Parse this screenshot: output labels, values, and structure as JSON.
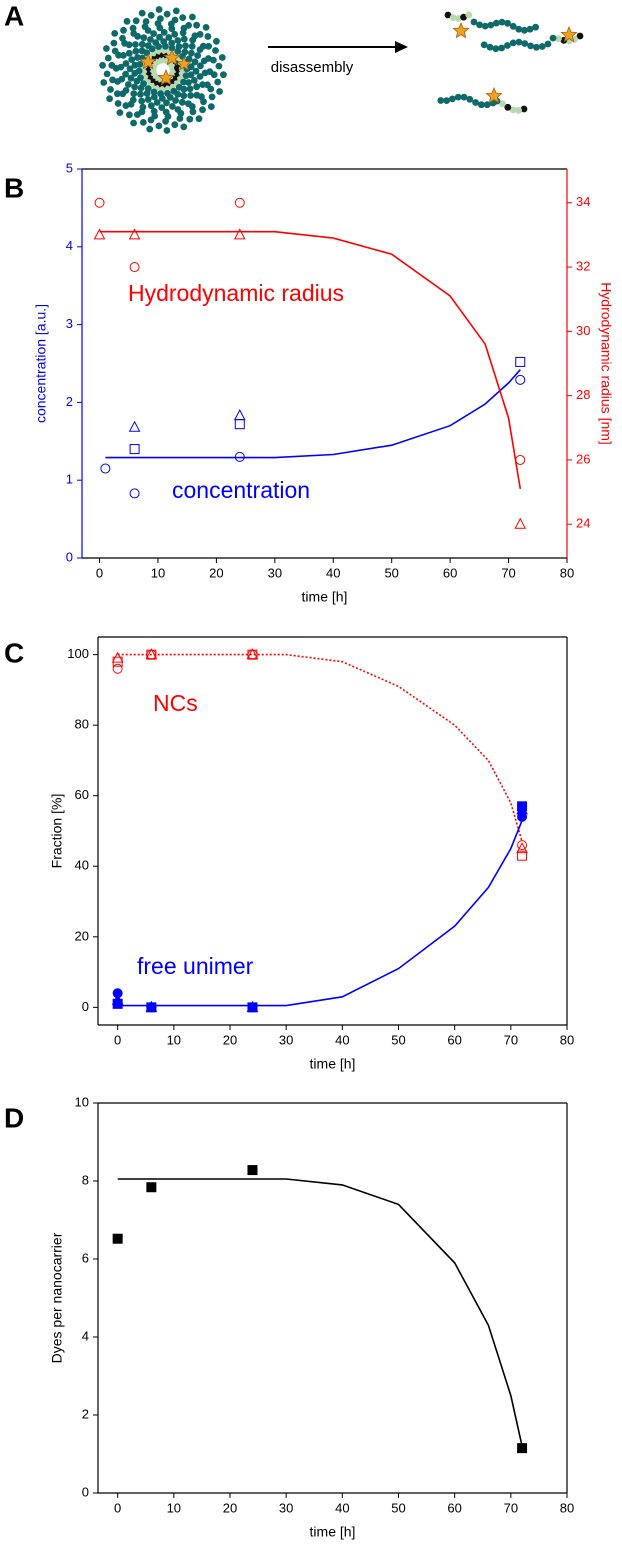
{
  "schematic": {
    "panel": "A",
    "label": "disassembly"
  },
  "chart_data": [
    {
      "type": "scatter",
      "panel": "B",
      "xlabel": "time [h]",
      "ylabel": "concentration [a.u.]",
      "y2label": "Hydrodynamic radius [nm]",
      "xlim": [
        -3,
        80
      ],
      "xticks": [
        0,
        10,
        20,
        30,
        40,
        50,
        60,
        70,
        80
      ],
      "ylim": [
        0,
        5
      ],
      "yticks": [
        0,
        1,
        2,
        3,
        4,
        5
      ],
      "ycolor": "#0000ff",
      "y2lim": [
        22.95,
        35.05
      ],
      "y2ticks": [
        24,
        26,
        28,
        30,
        32,
        34
      ],
      "y2color": "#ff0000",
      "annotations": [
        {
          "text": "Hydrodynamic radius",
          "color": "#ff0000"
        },
        {
          "text": "concentration",
          "color": "#0000ff"
        }
      ],
      "series": [
        {
          "marker": "circle",
          "filled": false,
          "color": "#0000ff",
          "x": [
            1,
            6,
            24,
            72
          ],
          "values": [
            1.15,
            0.83,
            1.3,
            2.29
          ]
        },
        {
          "marker": "square",
          "filled": false,
          "color": "#0000ff",
          "x": [
            6,
            24,
            72
          ],
          "values": [
            1.4,
            1.72,
            2.52
          ]
        },
        {
          "marker": "triangle",
          "filled": false,
          "color": "#0000ff",
          "x": [
            6,
            24
          ],
          "values": [
            1.68,
            1.83
          ]
        },
        {
          "marker": "line",
          "color": "#0000ff",
          "x": [
            1,
            30,
            40,
            50,
            60,
            66,
            70,
            72
          ],
          "values": [
            1.29,
            1.29,
            1.33,
            1.45,
            1.7,
            1.98,
            2.25,
            2.42
          ]
        },
        {
          "marker": "circle",
          "filled": false,
          "color": "#ff0000",
          "axis": "y2",
          "x": [
            0,
            6,
            24,
            72
          ],
          "values": [
            34,
            32,
            34,
            26
          ]
        },
        {
          "marker": "triangle",
          "filled": false,
          "color": "#ff0000",
          "axis": "y2",
          "x": [
            0,
            6,
            24,
            72
          ],
          "values": [
            33,
            33,
            33,
            24
          ]
        },
        {
          "marker": "line",
          "color": "#ff0000",
          "axis": "y2",
          "x": [
            0,
            30,
            40,
            50,
            60,
            66,
            70,
            72
          ],
          "values": [
            33.1,
            33.1,
            32.9,
            32.4,
            31.1,
            29.6,
            27.3,
            25.1
          ]
        }
      ]
    },
    {
      "type": "scatter",
      "panel": "C",
      "xlabel": "time [h]",
      "ylabel": "Fraction [%]",
      "xlim": [
        -3.5,
        80
      ],
      "xticks": [
        0,
        10,
        20,
        30,
        40,
        50,
        60,
        70,
        80
      ],
      "ylim": [
        -5,
        105
      ],
      "yticks": [
        0,
        20,
        40,
        60,
        80,
        100
      ],
      "annotations": [
        {
          "text": "NCs",
          "color": "#ff0000"
        },
        {
          "text": "free unimer",
          "color": "#0000ff"
        }
      ],
      "series": [
        {
          "marker": "circle",
          "filled": false,
          "color": "#ff0000",
          "x": [
            0,
            6,
            24,
            72
          ],
          "values": [
            96,
            100,
            100,
            46
          ]
        },
        {
          "marker": "square",
          "filled": false,
          "color": "#ff0000",
          "x": [
            0,
            6,
            24,
            72
          ],
          "values": [
            98,
            100,
            100,
            43
          ]
        },
        {
          "marker": "triangle",
          "filled": false,
          "color": "#ff0000",
          "x": [
            0,
            6,
            24,
            72
          ],
          "values": [
            99,
            100,
            100,
            45
          ]
        },
        {
          "marker": "line",
          "dash": true,
          "color": "#ff0000",
          "x": [
            0,
            30,
            40,
            50,
            60,
            66,
            70,
            72
          ],
          "values": [
            100,
            100,
            98,
            91,
            80,
            70,
            58,
            47
          ]
        },
        {
          "marker": "circle",
          "filled": true,
          "color": "#0000ff",
          "x": [
            0,
            6,
            24,
            72
          ],
          "values": [
            4,
            0,
            0,
            54
          ]
        },
        {
          "marker": "square",
          "filled": true,
          "color": "#0000ff",
          "x": [
            0,
            6,
            24,
            72
          ],
          "values": [
            1,
            0,
            0,
            57
          ]
        },
        {
          "marker": "triangle",
          "filled": true,
          "color": "#0000ff",
          "x": [
            0,
            6,
            24,
            72
          ],
          "values": [
            2,
            0,
            0,
            56
          ]
        },
        {
          "marker": "line",
          "color": "#0000ff",
          "x": [
            0,
            30,
            40,
            50,
            60,
            66,
            70,
            72
          ],
          "values": [
            0.5,
            0.5,
            3,
            11,
            23,
            34,
            45,
            53
          ]
        }
      ]
    },
    {
      "type": "scatter",
      "panel": "D",
      "xlabel": "time [h]",
      "ylabel": "Dyes per nanocarrier",
      "xlim": [
        -3.5,
        80
      ],
      "xticks": [
        0,
        10,
        20,
        30,
        40,
        50,
        60,
        70,
        80
      ],
      "ylim": [
        0,
        10
      ],
      "yticks": [
        0,
        2,
        4,
        6,
        8,
        10
      ],
      "series": [
        {
          "marker": "square",
          "filled": true,
          "color": "#000000",
          "x": [
            0,
            6,
            24,
            72
          ],
          "values": [
            6.52,
            7.84,
            8.28,
            1.15
          ]
        },
        {
          "marker": "line",
          "color": "#000000",
          "x": [
            0,
            30,
            40,
            50,
            60,
            66,
            70,
            72
          ],
          "values": [
            8.05,
            8.05,
            7.9,
            7.4,
            5.9,
            4.3,
            2.5,
            1.2
          ]
        }
      ]
    }
  ]
}
